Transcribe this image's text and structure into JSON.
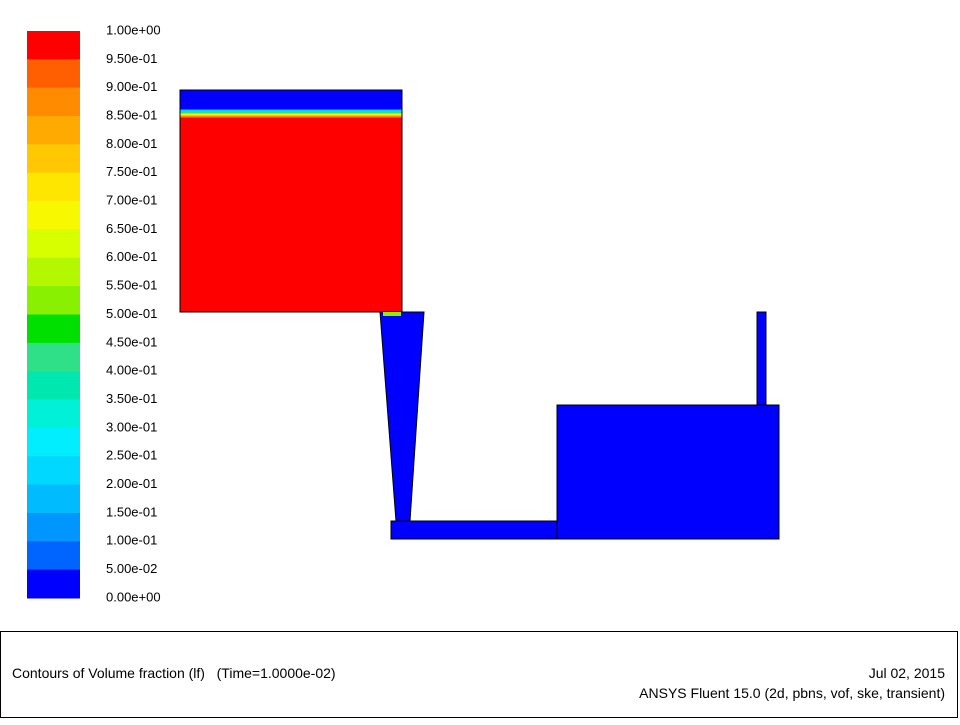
{
  "colorbar": {
    "labels": [
      "1.00e+00",
      "9.50e-01",
      "9.00e-01",
      "8.50e-01",
      "8.00e-01",
      "7.50e-01",
      "7.00e-01",
      "6.50e-01",
      "6.00e-01",
      "5.50e-01",
      "5.00e-01",
      "4.50e-01",
      "4.00e-01",
      "3.50e-01",
      "3.00e-01",
      "2.50e-01",
      "2.00e-01",
      "1.50e-01",
      "1.00e-01",
      "5.00e-02",
      "0.00e+00"
    ],
    "colors": [
      "#ff0000",
      "#ff5f00",
      "#ff8c00",
      "#ffaa00",
      "#ffc800",
      "#ffe600",
      "#f8f800",
      "#d8ff00",
      "#b4f800",
      "#88f000",
      "#00e000",
      "#30e088",
      "#00e8b0",
      "#00f0d8",
      "#00eeff",
      "#00d8ff",
      "#00bcff",
      "#0096ff",
      "#0064ff",
      "#0000ff"
    ]
  },
  "footer": {
    "title": "Contours of Volume fraction (lf)   (Time=1.0000e-02)",
    "date": "Jul 02, 2015",
    "software": "ANSYS Fluent 15.0 (2d, pbns, vof, ske, transient)"
  }
}
